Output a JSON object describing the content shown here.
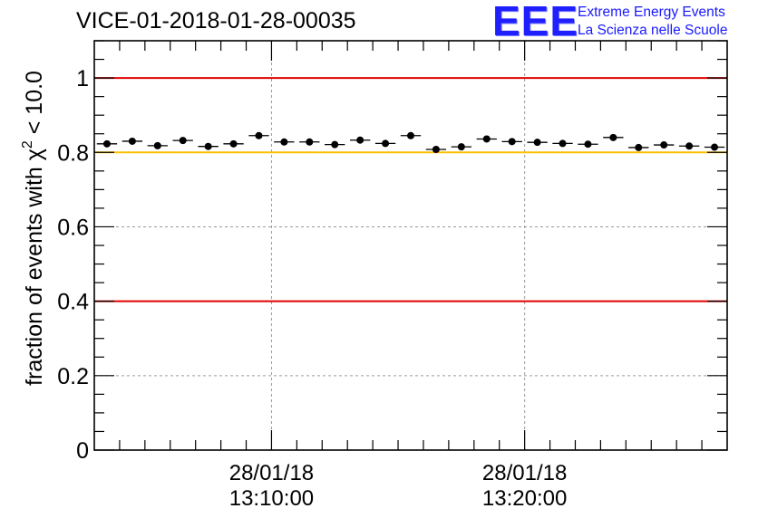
{
  "chart_data": {
    "type": "scatter",
    "title": "VICE-01-2018-01-28-00035",
    "ylabel": {
      "prefix": "fraction of events with ",
      "symbol": "χ",
      "superscript": "2",
      "suffix": " < 10.0"
    },
    "xlabel": "",
    "ylim": [
      0,
      1.1
    ],
    "yticks": [
      {
        "value": 0,
        "label": "0"
      },
      {
        "value": 0.2,
        "label": "0.2"
      },
      {
        "value": 0.4,
        "label": "0.4"
      },
      {
        "value": 0.6,
        "label": "0.6"
      },
      {
        "value": 0.8,
        "label": "0.8"
      },
      {
        "value": 1.0,
        "label": "1"
      }
    ],
    "xlim_minutes": [
      0,
      25
    ],
    "xticks": [
      {
        "minute": 7,
        "date": "28/01/18",
        "time": "13:10:00"
      },
      {
        "minute": 17,
        "date": "28/01/18",
        "time": "13:20:00"
      }
    ],
    "grid": true,
    "reference_lines": [
      {
        "value": 1.0,
        "color": "#e00000"
      },
      {
        "value": 0.8,
        "color": "#ffbf00"
      },
      {
        "value": 0.4,
        "color": "#e00000"
      }
    ],
    "series": [
      {
        "name": "fraction",
        "marker_color": "#000000",
        "bin_width_minutes": 0.8,
        "x_minutes": [
          0.5,
          1.5,
          2.5,
          3.5,
          4.5,
          5.5,
          6.5,
          7.5,
          8.5,
          9.5,
          10.5,
          11.5,
          12.5,
          13.5,
          14.5,
          15.5,
          16.5,
          17.5,
          18.5,
          19.5,
          20.5,
          21.5,
          22.5,
          23.5,
          24.5
        ],
        "values": [
          0.823,
          0.83,
          0.818,
          0.832,
          0.816,
          0.823,
          0.845,
          0.828,
          0.828,
          0.821,
          0.833,
          0.824,
          0.845,
          0.808,
          0.815,
          0.836,
          0.829,
          0.827,
          0.824,
          0.822,
          0.84,
          0.813,
          0.82,
          0.817,
          0.814
        ]
      }
    ]
  },
  "logo": {
    "mark": "EEE",
    "line1": "Extreme Energy Events",
    "line2": "La Scienza nelle Scuole"
  }
}
